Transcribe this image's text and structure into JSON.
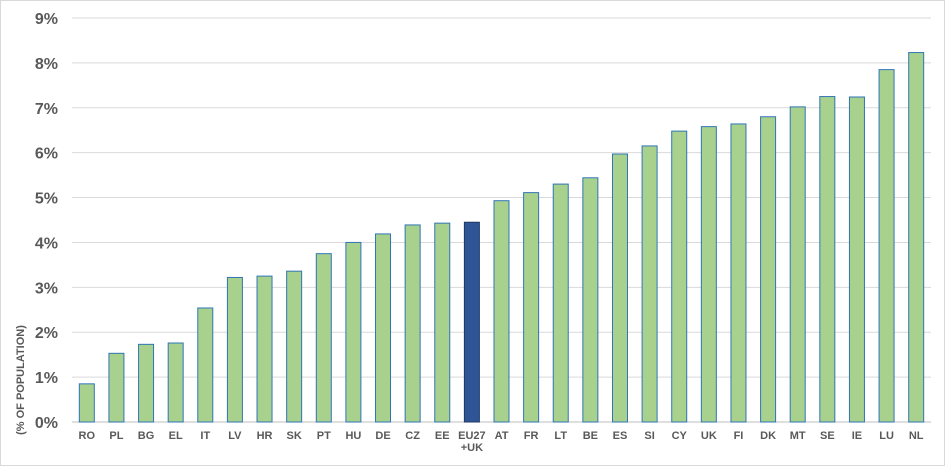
{
  "chart_data": {
    "type": "bar",
    "title": "",
    "xlabel": "",
    "ylabel": "(% OF POPULATION)",
    "ylim": [
      0,
      9
    ],
    "y_ticks": [
      "0%",
      "1%",
      "2%",
      "3%",
      "4%",
      "5%",
      "6%",
      "7%",
      "8%",
      "9%"
    ],
    "grid": true,
    "legend": "none",
    "categories": [
      "RO",
      "PL",
      "BG",
      "EL",
      "IT",
      "LV",
      "HR",
      "SK",
      "PT",
      "HU",
      "DE",
      "CZ",
      "EE",
      "EU27+UK",
      "AT",
      "FR",
      "LT",
      "BE",
      "ES",
      "SI",
      "CY",
      "UK",
      "FI",
      "DK",
      "MT",
      "SE",
      "IE",
      "LU",
      "NL"
    ],
    "category_lines": [
      [
        "RO"
      ],
      [
        "PL"
      ],
      [
        "BG"
      ],
      [
        "EL"
      ],
      [
        "IT"
      ],
      [
        "LV"
      ],
      [
        "HR"
      ],
      [
        "SK"
      ],
      [
        "PT"
      ],
      [
        "HU"
      ],
      [
        "DE"
      ],
      [
        "CZ"
      ],
      [
        "EE"
      ],
      [
        "EU27",
        "+UK"
      ],
      [
        "AT"
      ],
      [
        "FR"
      ],
      [
        "LT"
      ],
      [
        "BE"
      ],
      [
        "ES"
      ],
      [
        "SI"
      ],
      [
        "CY"
      ],
      [
        "UK"
      ],
      [
        "FI"
      ],
      [
        "DK"
      ],
      [
        "MT"
      ],
      [
        "SE"
      ],
      [
        "IE"
      ],
      [
        "LU"
      ],
      [
        "NL"
      ]
    ],
    "values": [
      0.85,
      1.53,
      1.73,
      1.76,
      2.54,
      3.22,
      3.25,
      3.36,
      3.75,
      4.0,
      4.19,
      4.39,
      4.43,
      4.45,
      4.93,
      5.11,
      5.3,
      5.44,
      5.97,
      6.15,
      6.48,
      6.58,
      6.64,
      6.8,
      7.02,
      7.25,
      7.24,
      7.85,
      8.23
    ],
    "highlight_index": 13,
    "colors": {
      "bar_fill": "#a9d18e",
      "bar_stroke": "#2e75b6",
      "highlight_fill": "#2f5597",
      "highlight_stroke": "#1f3864",
      "gridline": "#d9d9d9",
      "text": "#595959"
    }
  }
}
